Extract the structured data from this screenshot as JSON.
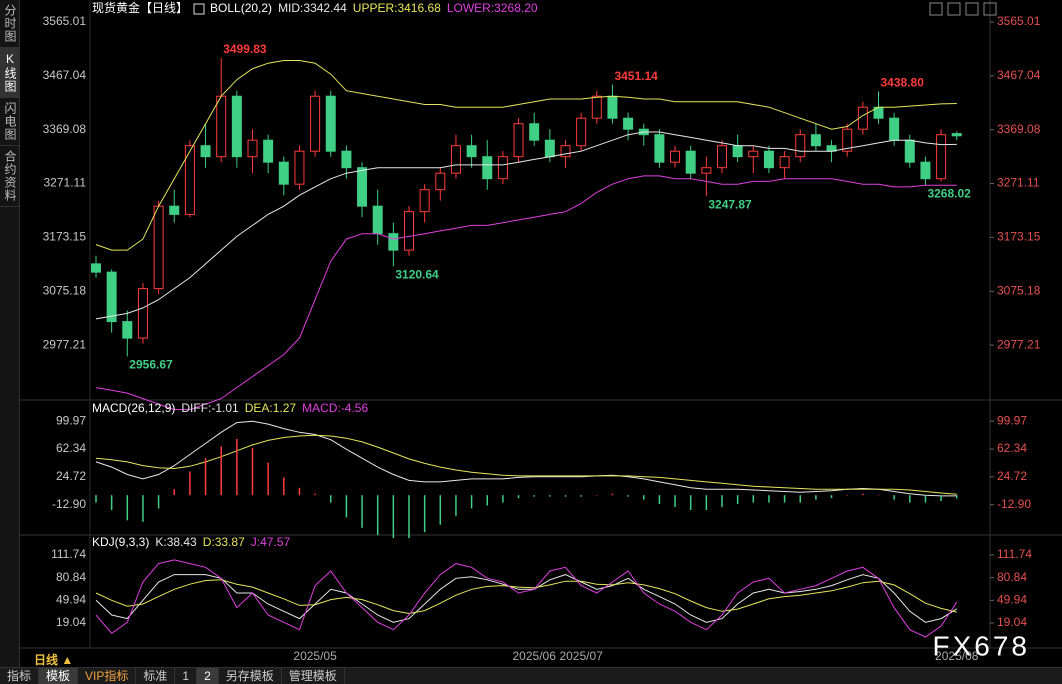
{
  "chart_data": [
    {
      "type": "candlestick",
      "title": "现货黄金【日线】",
      "indicator": "BOLL(20,2)",
      "up_color": "#ff3b3b",
      "down_color": "#3fcf85",
      "categories": [
        null,
        null,
        null,
        null,
        null,
        null,
        null,
        null,
        null,
        null,
        null,
        null,
        null,
        null,
        "2025/05",
        null,
        null,
        null,
        null,
        null,
        null,
        null,
        null,
        null,
        null,
        null,
        null,
        null,
        "2025/06",
        null,
        null,
        "2025/07",
        null,
        null,
        null,
        null,
        null,
        null,
        null,
        null,
        null,
        null,
        null,
        null,
        null,
        null,
        null,
        null,
        null,
        null,
        null,
        null,
        null,
        null,
        null,
        "2025/08"
      ],
      "open": [
        3125,
        3110,
        3020,
        2990,
        3080,
        3230,
        3215,
        3340,
        3320,
        3430,
        3320,
        3350,
        3310,
        3270,
        3330,
        3430,
        3330,
        3300,
        3230,
        3180,
        3150,
        3220,
        3260,
        3290,
        3340,
        3320,
        3280,
        3320,
        3380,
        3350,
        3320,
        3340,
        3390,
        3430,
        3390,
        3370,
        3360,
        3310,
        3330,
        3290,
        3300,
        3340,
        3320,
        3330,
        3300,
        3320,
        3360,
        3340,
        3330,
        3370,
        3410,
        3390,
        3350,
        3310,
        3280,
        3362
      ],
      "high": [
        3140,
        3115,
        3040,
        3090,
        3240,
        3260,
        3350,
        3380,
        3499.83,
        3440,
        3370,
        3360,
        3320,
        3340,
        3440,
        3440,
        3340,
        3310,
        3260,
        3200,
        3230,
        3270,
        3300,
        3360,
        3360,
        3350,
        3330,
        3390,
        3400,
        3370,
        3350,
        3400,
        3440,
        3451.14,
        3400,
        3380,
        3370,
        3340,
        3340,
        3320,
        3350,
        3360,
        3340,
        3340,
        3330,
        3370,
        3380,
        3350,
        3380,
        3420,
        3438.8,
        3400,
        3360,
        3320,
        3370,
        3366
      ],
      "low": [
        3100,
        3000,
        2956.67,
        2980,
        3070,
        3200,
        3210,
        3300,
        3310,
        3300,
        3290,
        3290,
        3250,
        3260,
        3320,
        3320,
        3280,
        3210,
        3160,
        3120.64,
        3140,
        3200,
        3240,
        3280,
        3300,
        3260,
        3270,
        3310,
        3340,
        3310,
        3300,
        3330,
        3380,
        3380,
        3350,
        3340,
        3300,
        3300,
        3280,
        3247.87,
        3290,
        3310,
        3290,
        3290,
        3280,
        3310,
        3330,
        3310,
        3320,
        3360,
        3380,
        3340,
        3300,
        3268.02,
        3275,
        3350
      ],
      "close": [
        3110,
        3020,
        2990,
        3080,
        3230,
        3215,
        3340,
        3320,
        3430,
        3320,
        3350,
        3310,
        3270,
        3330,
        3430,
        3330,
        3300,
        3230,
        3180,
        3150,
        3220,
        3260,
        3290,
        3340,
        3320,
        3280,
        3320,
        3380,
        3350,
        3320,
        3340,
        3390,
        3430,
        3390,
        3370,
        3360,
        3310,
        3330,
        3290,
        3300,
        3340,
        3320,
        3330,
        3300,
        3320,
        3360,
        3340,
        3330,
        3370,
        3410,
        3390,
        3350,
        3310,
        3280,
        3360,
        3358
      ],
      "high_labels": [
        null,
        null,
        null,
        null,
        null,
        null,
        null,
        null,
        "3499.83",
        null,
        null,
        null,
        null,
        null,
        null,
        null,
        null,
        null,
        null,
        null,
        null,
        null,
        null,
        null,
        null,
        null,
        null,
        null,
        null,
        null,
        null,
        null,
        null,
        "3451.14",
        null,
        null,
        null,
        null,
        null,
        null,
        null,
        null,
        null,
        null,
        null,
        null,
        null,
        null,
        null,
        null,
        "3438.80",
        null,
        null,
        null,
        null,
        null
      ],
      "low_labels": [
        null,
        null,
        "2956.67",
        null,
        null,
        null,
        null,
        null,
        null,
        null,
        null,
        null,
        null,
        null,
        null,
        null,
        null,
        null,
        null,
        "3120.64",
        null,
        null,
        null,
        null,
        null,
        null,
        null,
        null,
        null,
        null,
        null,
        null,
        null,
        null,
        null,
        null,
        null,
        null,
        null,
        "3247.87",
        null,
        null,
        null,
        null,
        null,
        null,
        null,
        null,
        null,
        null,
        null,
        null,
        null,
        "3268.02",
        null,
        null
      ],
      "series": [
        {
          "name": "MID:3342.44",
          "color": "#e8e8e8",
          "values": [
            3025,
            3030,
            3035,
            3045,
            3060,
            3080,
            3100,
            3125,
            3150,
            3175,
            3195,
            3215,
            3230,
            3250,
            3265,
            3280,
            3290,
            3295,
            3300,
            3300,
            3300,
            3300,
            3300,
            3305,
            3305,
            3305,
            3305,
            3310,
            3315,
            3320,
            3325,
            3330,
            3340,
            3350,
            3360,
            3365,
            3365,
            3360,
            3355,
            3350,
            3345,
            3340,
            3340,
            3335,
            3335,
            3330,
            3330,
            3330,
            3335,
            3340,
            3345,
            3350,
            3350,
            3345,
            3342,
            3342.44
          ]
        },
        {
          "name": "UPPER:3416.68",
          "color": "#e6e65c",
          "values": [
            3160,
            3150,
            3150,
            3170,
            3230,
            3280,
            3330,
            3380,
            3430,
            3460,
            3480,
            3490,
            3495,
            3495,
            3490,
            3470,
            3440,
            3435,
            3430,
            3425,
            3420,
            3415,
            3415,
            3410,
            3410,
            3410,
            3410,
            3415,
            3420,
            3425,
            3425,
            3425,
            3428,
            3430,
            3428,
            3425,
            3425,
            3420,
            3420,
            3420,
            3420,
            3420,
            3415,
            3410,
            3400,
            3390,
            3380,
            3370,
            3375,
            3395,
            3410,
            3410,
            3412,
            3414,
            3416,
            3416.68
          ]
        },
        {
          "name": "LOWER:3268.20",
          "color": "#e040e0",
          "values": [
            2900,
            2895,
            2890,
            2880,
            2870,
            2860,
            2860,
            2870,
            2880,
            2900,
            2920,
            2940,
            2960,
            2990,
            3060,
            3130,
            3170,
            3180,
            3180,
            3170,
            3175,
            3180,
            3185,
            3190,
            3195,
            3195,
            3200,
            3205,
            3210,
            3215,
            3220,
            3235,
            3255,
            3270,
            3280,
            3285,
            3285,
            3280,
            3280,
            3275,
            3270,
            3270,
            3275,
            3275,
            3280,
            3280,
            3280,
            3280,
            3275,
            3270,
            3270,
            3265,
            3265,
            3268,
            3268,
            3268.2
          ]
        }
      ],
      "ylim": [
        2877.4,
        3583.2
      ],
      "yticks": [
        3565.01,
        3467.04,
        3369.08,
        3271.11,
        3173.15,
        3075.18,
        2977.21
      ],
      "grid": false
    },
    {
      "type": "line",
      "indicator": "MACD(26,12,9)",
      "series": [
        {
          "name": "DIFF:-1.01",
          "color": "#e8e8e8",
          "values": [
            45,
            38,
            28,
            22,
            28,
            40,
            55,
            70,
            85,
            98,
            100,
            96,
            90,
            85,
            82,
            75,
            62,
            50,
            38,
            28,
            20,
            18,
            18,
            20,
            22,
            22,
            22,
            24,
            25,
            25,
            25,
            25,
            26,
            27,
            25,
            22,
            18,
            14,
            10,
            8,
            8,
            8,
            7,
            6,
            5,
            4,
            5,
            6,
            8,
            9,
            8,
            5,
            2,
            0,
            -1,
            -1.01
          ]
        },
        {
          "name": "DEA:1.27",
          "color": "#e6e65c",
          "values": [
            50,
            48,
            45,
            40,
            37,
            36,
            39,
            45,
            52,
            60,
            68,
            74,
            78,
            80,
            81,
            80,
            77,
            72,
            65,
            57,
            49,
            43,
            38,
            34,
            31,
            29,
            27,
            26,
            26,
            26,
            26,
            26,
            26,
            26,
            26,
            25,
            24,
            22,
            20,
            18,
            16,
            14,
            12,
            11,
            10,
            9,
            8,
            8,
            8,
            8,
            8,
            8,
            7,
            5,
            3,
            1.27
          ]
        },
        {
          "name": "MACD:-4.56",
          "color": "#e040e0",
          "type": "bar",
          "up_color": "#ff3b3b",
          "down_color": "#3fcf85",
          "values": [
            -10,
            -20,
            -34,
            -36,
            -18,
            8,
            32,
            50,
            66,
            76,
            64,
            44,
            24,
            10,
            2,
            -10,
            -30,
            -44,
            -54,
            -58,
            -58,
            -50,
            -40,
            -28,
            -18,
            -14,
            -10,
            -4,
            -2,
            -2,
            -2,
            -2,
            0,
            2,
            -2,
            -6,
            -12,
            -16,
            -20,
            -20,
            -16,
            -12,
            -10,
            -10,
            -10,
            -10,
            -6,
            -4,
            0,
            2,
            0,
            -6,
            -10,
            -10,
            -8,
            -4.56
          ]
        }
      ],
      "ylim": [
        -53.8,
        128.6
      ],
      "yticks": [
        99.97,
        62.34,
        24.72,
        {
          "value": -12.9,
          "label": "-12.90"
        }
      ]
    },
    {
      "type": "line",
      "indicator": "KDJ(9,3,3)",
      "series": [
        {
          "name": "K:38.43",
          "color": "#e8e8e8",
          "values": [
            50,
            30,
            25,
            50,
            75,
            85,
            85,
            85,
            80,
            60,
            60,
            45,
            35,
            25,
            45,
            65,
            60,
            45,
            30,
            20,
            25,
            45,
            65,
            80,
            82,
            78,
            72,
            65,
            65,
            78,
            85,
            75,
            65,
            70,
            80,
            65,
            55,
            45,
            30,
            20,
            25,
            45,
            60,
            65,
            60,
            62,
            65,
            70,
            78,
            85,
            80,
            60,
            35,
            20,
            25,
            38.43
          ]
        },
        {
          "name": "D:33.87",
          "color": "#e6e65c",
          "values": [
            60,
            50,
            42,
            45,
            55,
            65,
            72,
            77,
            78,
            72,
            68,
            60,
            52,
            43,
            44,
            51,
            54,
            51,
            44,
            36,
            32,
            36,
            46,
            57,
            65,
            69,
            70,
            68,
            67,
            71,
            76,
            76,
            72,
            71,
            74,
            71,
            66,
            59,
            49,
            40,
            35,
            38,
            45,
            52,
            55,
            57,
            60,
            63,
            68,
            74,
            76,
            71,
            59,
            46,
            39,
            33.87
          ]
        },
        {
          "name": "J:47.57",
          "color": "#e040e0",
          "values": [
            30,
            5,
            20,
            75,
            100,
            105,
            100,
            95,
            80,
            40,
            60,
            30,
            20,
            10,
            70,
            90,
            60,
            40,
            20,
            10,
            30,
            60,
            85,
            100,
            95,
            80,
            75,
            60,
            65,
            90,
            95,
            70,
            60,
            75,
            90,
            60,
            45,
            35,
            20,
            10,
            30,
            60,
            75,
            80,
            60,
            65,
            70,
            80,
            90,
            95,
            80,
            40,
            10,
            0,
            15,
            47.57
          ]
        }
      ],
      "ylim": [
        -15,
        139
      ],
      "yticks": [
        111.74,
        80.84,
        49.94,
        19.04
      ]
    }
  ],
  "ui": {
    "sidebar": [
      "分时图",
      "K线图",
      "闪电图",
      "合约资料"
    ],
    "period": "日线 ▲",
    "tabs": [
      "指标",
      "模板",
      "VIP指标",
      "标准",
      "1",
      "2",
      "另存模板",
      "管理模板"
    ],
    "watermark": "FX678"
  }
}
